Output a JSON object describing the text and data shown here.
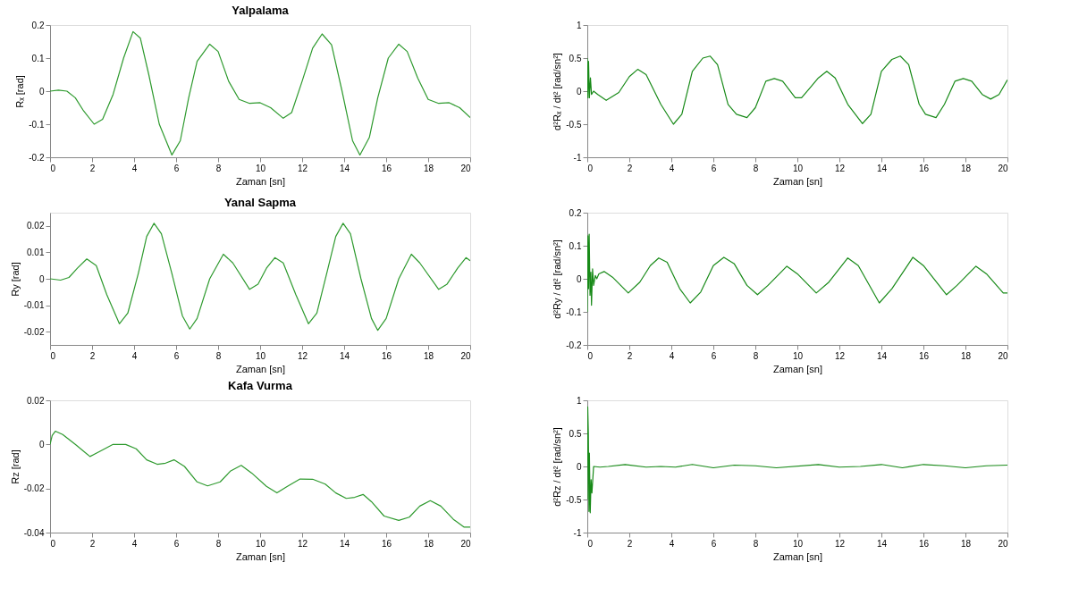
{
  "chart_data": [
    {
      "type": "line",
      "title": "Yalpalama",
      "xlabel": "Zaman [sn]",
      "ylabel": "Rₓ [rad]",
      "xlim": [
        0,
        20
      ],
      "xticks": [
        0,
        2,
        4,
        6,
        8,
        10,
        12,
        14,
        16,
        18,
        20
      ],
      "ylim": [
        -0.2,
        0.2
      ],
      "yticks": [
        -0.2,
        -0.1,
        0,
        0.1,
        0.2
      ],
      "grid": false,
      "legend": false,
      "series": [
        {
          "color": "#2e9a2e",
          "x": [
            0,
            0.4,
            0.8,
            1.2,
            1.6,
            2.1,
            2.5,
            3,
            3.5,
            3.95,
            4.3,
            4.7,
            5.2,
            5.8,
            6.2,
            6.6,
            7.0,
            7.6,
            8.0,
            8.5,
            9.0,
            9.5,
            10.0,
            10.5,
            11.1,
            11.5,
            12.0,
            12.5,
            12.95,
            13.4,
            13.9,
            14.4,
            14.75,
            15.2,
            15.6,
            16.1,
            16.6,
            17.0,
            17.5,
            18.0,
            18.5,
            19.0,
            19.5,
            20
          ],
          "values": [
            0,
            0.003,
            0,
            -0.02,
            -0.06,
            -0.1,
            -0.085,
            -0.01,
            0.1,
            0.18,
            0.16,
            0.05,
            -0.1,
            -0.193,
            -0.15,
            -0.02,
            0.09,
            0.142,
            0.12,
            0.03,
            -0.025,
            -0.037,
            -0.035,
            -0.05,
            -0.082,
            -0.065,
            0.03,
            0.13,
            0.173,
            0.14,
            0.0,
            -0.15,
            -0.193,
            -0.14,
            -0.02,
            0.1,
            0.142,
            0.12,
            0.04,
            -0.025,
            -0.037,
            -0.035,
            -0.05,
            -0.08
          ]
        }
      ]
    },
    {
      "type": "line",
      "xlabel": "Zaman [sn]",
      "ylabel": "d²Rₓ / dt² [rad/sn²]",
      "xlim": [
        0,
        20
      ],
      "xticks": [
        0,
        2,
        4,
        6,
        8,
        10,
        12,
        14,
        16,
        18,
        20
      ],
      "ylim": [
        -1,
        1
      ],
      "yticks": [
        -1,
        -0.5,
        0,
        0.5,
        1
      ],
      "grid": false,
      "legend": false,
      "series": [
        {
          "color": "#188a18",
          "x": [
            0,
            0.03,
            0.06,
            0.1,
            0.15,
            0.2,
            0.3,
            0.5,
            0.9,
            1.5,
            2.0,
            2.4,
            2.8,
            3.5,
            4.1,
            4.5,
            5.0,
            5.5,
            5.85,
            6.2,
            6.7,
            7.1,
            7.6,
            8.0,
            8.5,
            8.9,
            9.3,
            9.9,
            10.2,
            10.6,
            11.0,
            11.4,
            11.8,
            12.4,
            13.1,
            13.5,
            14.0,
            14.5,
            14.9,
            15.3,
            15.8,
            16.1,
            16.6,
            17.0,
            17.5,
            17.9,
            18.3,
            18.8,
            19.2,
            19.6,
            20
          ],
          "values": [
            0.5,
            -0.1,
            0.45,
            -0.1,
            0.2,
            -0.05,
            0.0,
            -0.05,
            -0.14,
            -0.02,
            0.22,
            0.33,
            0.25,
            -0.2,
            -0.5,
            -0.35,
            0.3,
            0.5,
            0.53,
            0.4,
            -0.2,
            -0.35,
            -0.4,
            -0.25,
            0.15,
            0.19,
            0.15,
            -0.1,
            -0.1,
            0.05,
            0.2,
            0.3,
            0.2,
            -0.2,
            -0.49,
            -0.35,
            0.3,
            0.48,
            0.53,
            0.4,
            -0.2,
            -0.35,
            -0.4,
            -0.2,
            0.15,
            0.19,
            0.15,
            -0.05,
            -0.12,
            -0.05,
            0.17
          ]
        }
      ]
    },
    {
      "type": "line",
      "title": "Yanal Sapma",
      "xlabel": "Zaman [sn]",
      "ylabel": "Ry [rad]",
      "xlim": [
        0,
        20
      ],
      "xticks": [
        0,
        2,
        4,
        6,
        8,
        10,
        12,
        14,
        16,
        18,
        20
      ],
      "ylim": [
        -0.025,
        0.025
      ],
      "yticks": [
        -0.02,
        -0.01,
        0,
        0.01,
        0.02
      ],
      "grid": false,
      "legend": false,
      "series": [
        {
          "color": "#2e9a2e",
          "x": [
            0,
            0.5,
            0.9,
            1.3,
            1.75,
            2.2,
            2.7,
            3.3,
            3.7,
            4.2,
            4.6,
            4.95,
            5.3,
            5.8,
            6.3,
            6.65,
            7.0,
            7.6,
            8.25,
            8.7,
            9.5,
            9.9,
            10.3,
            10.7,
            11.1,
            11.7,
            12.3,
            12.7,
            13.2,
            13.6,
            13.95,
            14.3,
            14.8,
            15.3,
            15.6,
            16.0,
            16.6,
            17.2,
            17.6,
            18.5,
            18.9,
            19.4,
            19.8,
            20
          ],
          "values": [
            0,
            -0.0005,
            0.0005,
            0.004,
            0.0075,
            0.005,
            -0.006,
            -0.017,
            -0.013,
            0.002,
            0.016,
            0.021,
            0.017,
            0.002,
            -0.014,
            -0.019,
            -0.015,
            0.0,
            0.0093,
            0.006,
            -0.004,
            -0.002,
            0.004,
            0.008,
            0.006,
            -0.006,
            -0.017,
            -0.013,
            0.003,
            0.016,
            0.021,
            0.017,
            0.0,
            -0.015,
            -0.0195,
            -0.015,
            0.0,
            0.0093,
            0.006,
            -0.004,
            -0.002,
            0.004,
            0.008,
            0.0068
          ]
        }
      ]
    },
    {
      "type": "line",
      "xlabel": "Zaman [sn]",
      "ylabel": "d²Ry / dt² [rad/sn²]",
      "xlim": [
        0,
        20
      ],
      "xticks": [
        0,
        2,
        4,
        6,
        8,
        10,
        12,
        14,
        16,
        18,
        20
      ],
      "ylim": [
        -0.2,
        0.2
      ],
      "yticks": [
        -0.2,
        -0.1,
        0,
        0.1,
        0.2
      ],
      "grid": false,
      "legend": false,
      "series": [
        {
          "color": "#188a18",
          "x": [
            0,
            0.03,
            0.06,
            0.09,
            0.13,
            0.17,
            0.2,
            0.25,
            0.3,
            0.38,
            0.45,
            0.55,
            0.8,
            1.2,
            1.95,
            2.5,
            3.0,
            3.4,
            3.8,
            4.4,
            4.9,
            5.4,
            6.0,
            6.5,
            7.0,
            7.6,
            8.1,
            8.6,
            9.5,
            10.0,
            10.9,
            11.5,
            12.4,
            12.9,
            13.9,
            14.5,
            15.5,
            16.0,
            17.1,
            17.6,
            18.5,
            19.0,
            19.8,
            20
          ],
          "values": [
            -0.1,
            0.13,
            -0.03,
            0.135,
            -0.05,
            0.02,
            -0.08,
            0.03,
            -0.02,
            0.01,
            0.0,
            0.015,
            0.022,
            0.005,
            -0.043,
            -0.01,
            0.04,
            0.063,
            0.05,
            -0.03,
            -0.073,
            -0.04,
            0.04,
            0.065,
            0.045,
            -0.02,
            -0.048,
            -0.02,
            0.038,
            0.015,
            -0.043,
            -0.01,
            0.063,
            0.04,
            -0.073,
            -0.03,
            0.065,
            0.04,
            -0.048,
            -0.02,
            0.038,
            0.015,
            -0.043,
            -0.043
          ]
        }
      ]
    },
    {
      "type": "line",
      "title": "Kafa Vurma",
      "xlabel": "Zaman [sn]",
      "ylabel": "Rz [rad]",
      "xlim": [
        0,
        20
      ],
      "xticks": [
        0,
        2,
        4,
        6,
        8,
        10,
        12,
        14,
        16,
        18,
        20
      ],
      "ylim": [
        -0.04,
        0.02
      ],
      "yticks": [
        -0.04,
        -0.02,
        0,
        0.02
      ],
      "grid": false,
      "legend": false,
      "series": [
        {
          "color": "#2e9a2e",
          "x": [
            0,
            0.1,
            0.25,
            0.6,
            1.2,
            1.9,
            2.4,
            3.0,
            3.6,
            4.1,
            4.6,
            5.1,
            5.5,
            5.9,
            6.4,
            7.0,
            7.5,
            8.1,
            8.6,
            9.1,
            9.6,
            10.3,
            10.8,
            11.3,
            11.9,
            12.5,
            13.1,
            13.6,
            14.1,
            14.5,
            14.9,
            15.3,
            15.9,
            16.6,
            17.1,
            17.6,
            18.1,
            18.6,
            19.2,
            19.7,
            20
          ],
          "values": [
            0,
            0.004,
            0.006,
            0.0045,
            0.0,
            -0.0055,
            -0.003,
            0.0,
            0.0,
            -0.002,
            -0.007,
            -0.009,
            -0.0085,
            -0.007,
            -0.01,
            -0.017,
            -0.0188,
            -0.017,
            -0.012,
            -0.0095,
            -0.013,
            -0.019,
            -0.022,
            -0.019,
            -0.0157,
            -0.0158,
            -0.018,
            -0.022,
            -0.0245,
            -0.024,
            -0.0227,
            -0.026,
            -0.0325,
            -0.0345,
            -0.033,
            -0.028,
            -0.0255,
            -0.028,
            -0.034,
            -0.0375,
            -0.0375
          ]
        }
      ]
    },
    {
      "type": "line",
      "xlabel": "Zaman [sn]",
      "ylabel": "d²Rz / dt² [rad/sn²]",
      "xlim": [
        0,
        20
      ],
      "xticks": [
        0,
        2,
        4,
        6,
        8,
        10,
        12,
        14,
        16,
        18,
        20
      ],
      "ylim": [
        -1,
        1
      ],
      "yticks": [
        -1,
        -0.5,
        0,
        0.5,
        1
      ],
      "grid": false,
      "legend": false,
      "series": [
        {
          "color": "#188a18",
          "x": [
            0,
            0.02,
            0.05,
            0.08,
            0.1,
            0.14,
            0.18,
            0.22,
            0.3,
            0.6,
            1.0,
            1.8,
            2.8,
            3.5,
            4.2,
            5.0,
            6.0,
            7.0,
            8.0,
            9.0,
            11.0,
            12.0,
            13.0,
            14.0,
            15.0,
            16.0,
            17.0,
            18.0,
            19.0,
            20
          ],
          "values": [
            -0.5,
            0.9,
            0.5,
            -0.68,
            0.2,
            -0.7,
            -0.2,
            -0.4,
            0.0,
            -0.01,
            0.0,
            0.03,
            -0.01,
            0.0,
            -0.01,
            0.03,
            -0.02,
            0.02,
            0.01,
            -0.02,
            0.03,
            -0.01,
            0.0,
            0.03,
            -0.02,
            0.03,
            0.01,
            -0.02,
            0.01,
            0.02
          ]
        }
      ]
    }
  ]
}
